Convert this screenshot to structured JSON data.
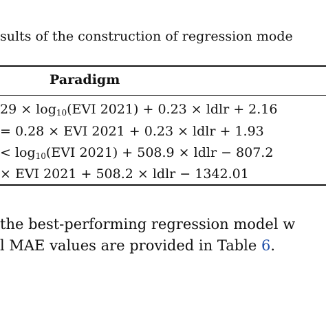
{
  "table": {
    "caption": "sults of the construction of regression mode",
    "column_header": "Paradigm",
    "rows": [
      {
        "pre": "29 × log",
        "sub": "10",
        "post": "(EVI 2021) + 0.23 × ldlr + 2.16"
      },
      {
        "pre": "= 0.28 × EVI 2021 + 0.23 × ldlr + 1.93",
        "sub": "",
        "post": ""
      },
      {
        "pre": "< log",
        "sub": "10",
        "post": "(EVI 2021) + 508.9 × ldlr − 807.2"
      },
      {
        "pre": "× EVI 2021 + 508.2 × ldlr − 1342.01",
        "sub": "",
        "post": ""
      }
    ]
  },
  "paragraph": {
    "line1": "the best-performing regression model w",
    "line2_text": "l MAE values are provided in Table ",
    "line2_link": "6",
    "line2_end": "."
  }
}
